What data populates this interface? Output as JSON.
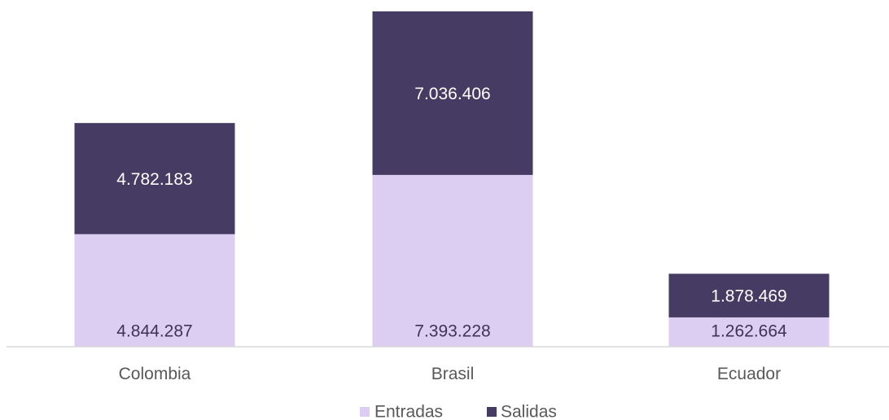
{
  "chart_data": {
    "type": "bar",
    "stacked": true,
    "categories": [
      "Colombia",
      "Brasil",
      "Ecuador"
    ],
    "series": [
      {
        "name": "Entradas",
        "values": [
          4844287,
          7393228,
          1262664
        ],
        "labels": [
          "4.844.287",
          "7.393.228",
          "1.262.664"
        ],
        "color": "#dccdf2",
        "label_color": "#3f3454"
      },
      {
        "name": "Salidas",
        "values": [
          4782183,
          7036406,
          1878469
        ],
        "labels": [
          "4.782.183",
          "7.036.406",
          "1.878.469"
        ],
        "color": "#463b63",
        "label_color": "#ffffff"
      }
    ],
    "title": "",
    "xlabel": "",
    "ylabel": "",
    "ylim": [
      0,
      14429634
    ],
    "grid": false,
    "legend_position": "bottom",
    "axis_color": "#d9d9d9"
  }
}
